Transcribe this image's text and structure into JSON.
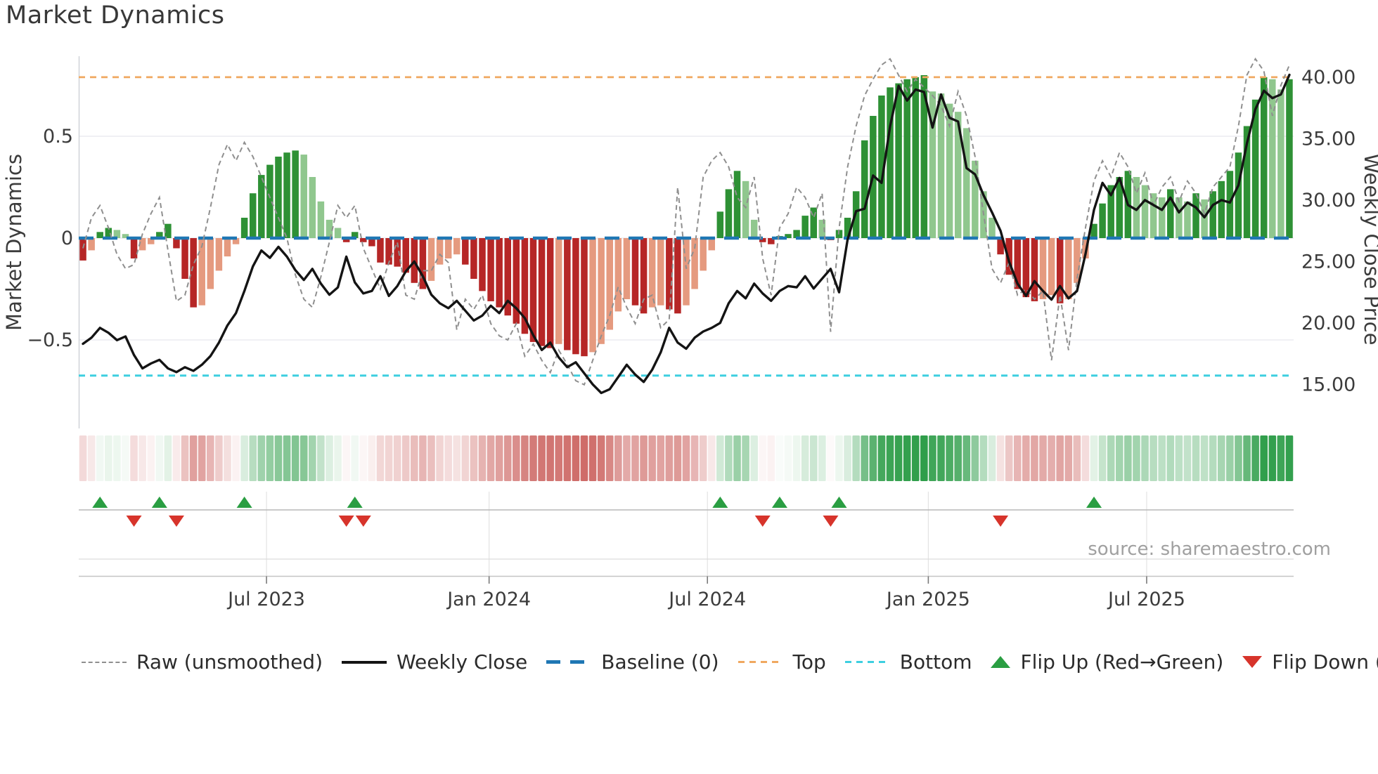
{
  "title": "Market Dynamics",
  "source": "source: sharemaestro.com",
  "axes": {
    "left_label": "Market Dynamics",
    "right_label": "Weekly Close Price",
    "left_ticks": [
      {
        "label": "0.5",
        "value": 0.5
      },
      {
        "label": "0",
        "value": 0.0
      },
      {
        "label": "−0.5",
        "value": -0.5
      }
    ],
    "right_ticks": [
      {
        "label": "40.00",
        "value": 40
      },
      {
        "label": "35.00",
        "value": 35
      },
      {
        "label": "30.00",
        "value": 30
      },
      {
        "label": "25.00",
        "value": 25
      },
      {
        "label": "20.00",
        "value": 20
      },
      {
        "label": "15.00",
        "value": 15
      }
    ],
    "x_ticks": [
      {
        "label": "Jul 2023",
        "week": 21.6
      },
      {
        "label": "Jan 2024",
        "week": 47.8
      },
      {
        "label": "Jul 2024",
        "week": 73.5
      },
      {
        "label": "Jan 2025",
        "week": 99.5
      },
      {
        "label": "Jul 2025",
        "week": 125.2
      }
    ]
  },
  "legend": {
    "items": [
      {
        "label": "Raw (unsmoothed)",
        "type": "dashed-line",
        "color": "#8f8f8f"
      },
      {
        "label": "Weekly Close",
        "type": "solid-line",
        "color": "#141414"
      },
      {
        "label": "Baseline (0)",
        "type": "dashed-line",
        "color": "#1f77b4"
      },
      {
        "label": "Top",
        "type": "dashed-line",
        "color": "#f0a860"
      },
      {
        "label": "Bottom",
        "type": "dashed-line",
        "color": "#3ecfe0"
      },
      {
        "label": "Flip Up (Red→Green)",
        "type": "triangle-up",
        "color": "#2a9e42"
      },
      {
        "label": "Flip Down (Green→Red)",
        "type": "triangle-down",
        "color": "#d7342b"
      }
    ]
  },
  "chart_data": {
    "type": "bar",
    "subtype": "combo-bar-line-heatmap",
    "n_weeks": 143,
    "baseline": 0,
    "top_line": 0.79,
    "bottom_line": -0.675,
    "ylim_left": [
      -0.93,
      0.89
    ],
    "ylim_right": [
      11.4,
      41.7
    ],
    "grid_values_left": [
      0.5,
      0,
      -0.5
    ],
    "series": [
      {
        "name": "Market Dynamics (smoothed bars)",
        "type": "bar",
        "axis": "left",
        "values": [
          -0.11,
          -0.06,
          0.03,
          0.05,
          0.04,
          0.02,
          -0.1,
          -0.06,
          -0.03,
          0.03,
          0.07,
          -0.05,
          -0.2,
          -0.34,
          -0.33,
          -0.25,
          -0.16,
          -0.09,
          -0.03,
          0.1,
          0.22,
          0.31,
          0.36,
          0.4,
          0.42,
          0.43,
          0.41,
          0.3,
          0.18,
          0.09,
          0.05,
          -0.02,
          0.03,
          -0.02,
          -0.04,
          -0.12,
          -0.13,
          -0.14,
          -0.17,
          -0.22,
          -0.25,
          -0.21,
          -0.13,
          -0.1,
          -0.08,
          -0.13,
          -0.2,
          -0.26,
          -0.31,
          -0.34,
          -0.38,
          -0.42,
          -0.47,
          -0.51,
          -0.53,
          -0.54,
          -0.52,
          -0.55,
          -0.57,
          -0.58,
          -0.56,
          -0.52,
          -0.45,
          -0.36,
          -0.3,
          -0.33,
          -0.37,
          -0.34,
          -0.33,
          -0.35,
          -0.37,
          -0.33,
          -0.25,
          -0.16,
          -0.06,
          0.13,
          0.24,
          0.33,
          0.28,
          0.09,
          -0.02,
          -0.03,
          0.01,
          0.02,
          0.04,
          0.11,
          0.15,
          0.09,
          -0.01,
          0.04,
          0.1,
          0.23,
          0.48,
          0.6,
          0.7,
          0.74,
          0.76,
          0.78,
          0.79,
          0.8,
          0.72,
          0.71,
          0.66,
          0.62,
          0.54,
          0.38,
          0.23,
          0.1,
          -0.08,
          -0.18,
          -0.25,
          -0.29,
          -0.31,
          -0.3,
          -0.28,
          -0.32,
          -0.3,
          -0.22,
          -0.1,
          0.07,
          0.17,
          0.26,
          0.3,
          0.33,
          0.3,
          0.26,
          0.22,
          0.2,
          0.24,
          0.2,
          0.18,
          0.22,
          0.19,
          0.23,
          0.28,
          0.33,
          0.42,
          0.55,
          0.68,
          0.79,
          0.78,
          0.73,
          0.78
        ]
      },
      {
        "name": "Raw (unsmoothed)",
        "type": "line",
        "style": "dashed",
        "axis": "left",
        "values": [
          -0.05,
          0.1,
          0.16,
          0.05,
          -0.08,
          -0.15,
          -0.13,
          0.02,
          0.12,
          0.2,
          -0.06,
          -0.31,
          -0.28,
          -0.13,
          -0.04,
          0.15,
          0.36,
          0.46,
          0.38,
          0.47,
          0.4,
          0.3,
          0.2,
          0.1,
          0.0,
          -0.18,
          -0.3,
          -0.34,
          -0.19,
          -0.02,
          0.16,
          0.1,
          0.16,
          -0.05,
          -0.15,
          -0.25,
          -0.12,
          -0.02,
          -0.28,
          -0.3,
          -0.16,
          -0.16,
          -0.08,
          -0.12,
          -0.45,
          -0.3,
          -0.35,
          -0.28,
          -0.42,
          -0.48,
          -0.5,
          -0.42,
          -0.58,
          -0.52,
          -0.6,
          -0.66,
          -0.55,
          -0.62,
          -0.7,
          -0.72,
          -0.6,
          -0.48,
          -0.38,
          -0.24,
          -0.34,
          -0.42,
          -0.3,
          -0.28,
          -0.44,
          -0.4,
          0.25,
          -0.15,
          -0.05,
          0.3,
          0.38,
          0.42,
          0.35,
          0.2,
          0.15,
          0.3,
          -0.1,
          -0.28,
          0.05,
          0.12,
          0.25,
          0.2,
          0.1,
          0.22,
          -0.46,
          0.05,
          0.35,
          0.55,
          0.7,
          0.78,
          0.85,
          0.88,
          0.8,
          0.72,
          0.78,
          0.74,
          0.7,
          0.65,
          0.55,
          0.72,
          0.6,
          0.4,
          0.12,
          -0.15,
          -0.22,
          -0.12,
          -0.28,
          -0.25,
          -0.3,
          -0.26,
          -0.6,
          -0.28,
          -0.55,
          -0.2,
          0.05,
          0.28,
          0.38,
          0.3,
          0.42,
          0.35,
          0.22,
          0.32,
          0.16,
          0.25,
          0.3,
          0.18,
          0.28,
          0.22,
          0.12,
          0.25,
          0.3,
          0.35,
          0.55,
          0.8,
          0.88,
          0.82,
          0.6,
          0.75,
          0.85
        ]
      },
      {
        "name": "Weekly Close",
        "type": "line",
        "style": "solid",
        "axis": "right",
        "values": [
          18.3,
          18.8,
          19.6,
          19.2,
          18.6,
          18.9,
          17.4,
          16.3,
          16.7,
          17.0,
          16.3,
          16.0,
          16.4,
          16.1,
          16.6,
          17.3,
          18.4,
          19.8,
          20.8,
          22.6,
          24.6,
          25.9,
          25.3,
          26.2,
          25.4,
          24.3,
          23.5,
          24.4,
          23.2,
          22.3,
          22.9,
          25.4,
          23.3,
          22.4,
          22.6,
          23.8,
          22.2,
          23.0,
          24.2,
          25.0,
          23.8,
          22.3,
          21.6,
          21.2,
          21.8,
          21.0,
          20.2,
          20.6,
          21.4,
          20.8,
          21.8,
          21.2,
          20.4,
          19.0,
          17.8,
          18.4,
          17.2,
          16.4,
          16.8,
          15.9,
          15.0,
          14.3,
          14.6,
          15.6,
          16.6,
          15.8,
          15.2,
          16.2,
          17.6,
          19.6,
          18.4,
          17.9,
          18.8,
          19.3,
          19.6,
          20.0,
          21.6,
          22.6,
          22.0,
          23.2,
          22.4,
          21.8,
          22.6,
          23.0,
          22.9,
          23.8,
          22.8,
          23.6,
          24.4,
          22.5,
          26.8,
          29.1,
          29.3,
          32.0,
          31.4,
          36.0,
          39.3,
          38.1,
          39.0,
          38.8,
          35.9,
          38.6,
          36.7,
          36.4,
          32.6,
          32.1,
          30.4,
          29.0,
          27.5,
          25.0,
          23.2,
          22.2,
          23.4,
          22.6,
          21.9,
          23.0,
          22.0,
          22.6,
          25.6,
          29.2,
          31.4,
          30.4,
          31.8,
          29.6,
          29.2,
          30.0,
          29.6,
          29.2,
          30.2,
          29.0,
          29.8,
          29.4,
          28.6,
          29.6,
          30.0,
          29.8,
          31.2,
          34.6,
          37.4,
          38.9,
          38.3,
          38.6,
          40.2
        ]
      }
    ],
    "flip_up_weeks": [
      2,
      9,
      19,
      32,
      75,
      82,
      89,
      119
    ],
    "flip_down_weeks": [
      6,
      11,
      31,
      33,
      80,
      88,
      108
    ],
    "colors": {
      "bar_pos_dark": "#2e9135",
      "bar_pos_light": "#90c78e",
      "bar_neg_dark": "#b62626",
      "bar_neg_light": "#e59a7f",
      "baseline": "#1f77b4",
      "top": "#f0a860",
      "bottom": "#3ecfe0",
      "raw": "#8f8f8f",
      "price": "#141414",
      "flip_up": "#2a9e42",
      "flip_down": "#d7342b",
      "heat_pos": "#2f9e4a",
      "heat_neg": "#c0403c",
      "grid": "#ebecf0",
      "spine": "#cdd0d6",
      "panel_line": "#b8b8b8"
    },
    "legend_position": "bottom",
    "grid": true
  }
}
